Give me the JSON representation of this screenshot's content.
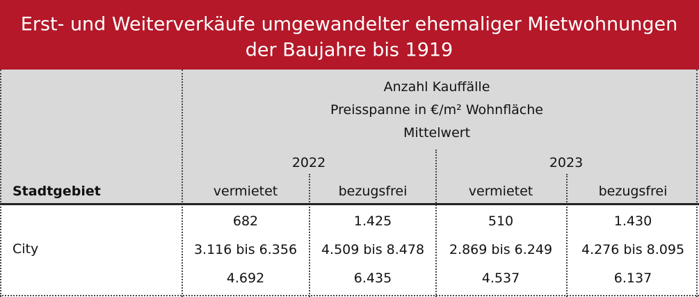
{
  "header": {
    "title": [
      "Erst- und Weiterverkäufe umgewandelter ehemaliger Mietwohnungen",
      "der Baujahre bis 1919"
    ]
  },
  "table": {
    "measures": [
      "Anzahl Kauffälle",
      "Preisspanne in €/m² Wohnfläche",
      "Mittelwert"
    ],
    "row_header": "Stadtgebiet",
    "years": [
      "2022",
      "2023"
    ],
    "columns": [
      "vermietet",
      "bezugsfrei",
      "vermietet",
      "bezugsfrei"
    ],
    "rows": [
      {
        "label": "City",
        "cells": [
          [
            "682",
            "3.116 bis 6.356",
            "4.692"
          ],
          [
            "1.425",
            "4.509 bis 8.478",
            "6.435"
          ],
          [
            "510",
            "2.869 bis 6.249",
            "4.537"
          ],
          [
            "1.430",
            "4.276 bis 8.095",
            "6.137"
          ]
        ]
      }
    ]
  }
}
